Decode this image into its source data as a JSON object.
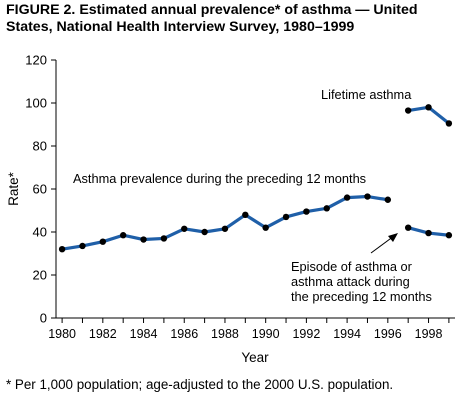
{
  "figure": {
    "title": "FIGURE 2. Estimated annual prevalence* of asthma — United States, National Health Interview Survey, 1980–1999",
    "footnote": "* Per 1,000 population; age-adjusted to the 2000 U.S. population."
  },
  "chart_data": {
    "type": "line",
    "xlabel": "Year",
    "ylabel": "Rate*",
    "xlim": [
      1979.7,
      1999.3
    ],
    "ylim": [
      0,
      120
    ],
    "x_ticks": [
      1980,
      1982,
      1984,
      1986,
      1988,
      1990,
      1992,
      1994,
      1996,
      1998
    ],
    "y_ticks": [
      0,
      20,
      40,
      60,
      80,
      100,
      120
    ],
    "grid": false,
    "line_color": "#1f5fa8",
    "marker_color": "#000000",
    "series": [
      {
        "name": "Asthma prevalence during the preceding 12 months",
        "x": [
          1980,
          1981,
          1982,
          1983,
          1984,
          1985,
          1986,
          1987,
          1988,
          1989,
          1990,
          1991,
          1992,
          1993,
          1994,
          1995,
          1996
        ],
        "values": [
          32,
          33.5,
          35.5,
          38.5,
          36.5,
          37,
          41.5,
          40,
          41.5,
          48,
          42,
          47,
          49.5,
          51,
          56,
          56.5,
          55
        ]
      },
      {
        "name": "Lifetime asthma",
        "x": [
          1997,
          1998,
          1999
        ],
        "values": [
          96.5,
          98,
          90.5
        ]
      },
      {
        "name": "Episode of asthma or asthma attack during the preceding 12 months",
        "x": [
          1997,
          1998,
          1999
        ],
        "values": [
          42,
          39.5,
          38.5
        ]
      }
    ],
    "annotations": [
      {
        "text": "Lifetime asthma",
        "position": "top-right"
      },
      {
        "text": "Asthma prevalence during the preceding 12 months",
        "position": "upper-left above series"
      },
      {
        "text": [
          "Episode of asthma or",
          "asthma attack during",
          "the preceding 12 months"
        ],
        "position": "bottom-right",
        "arrow": true
      }
    ]
  }
}
